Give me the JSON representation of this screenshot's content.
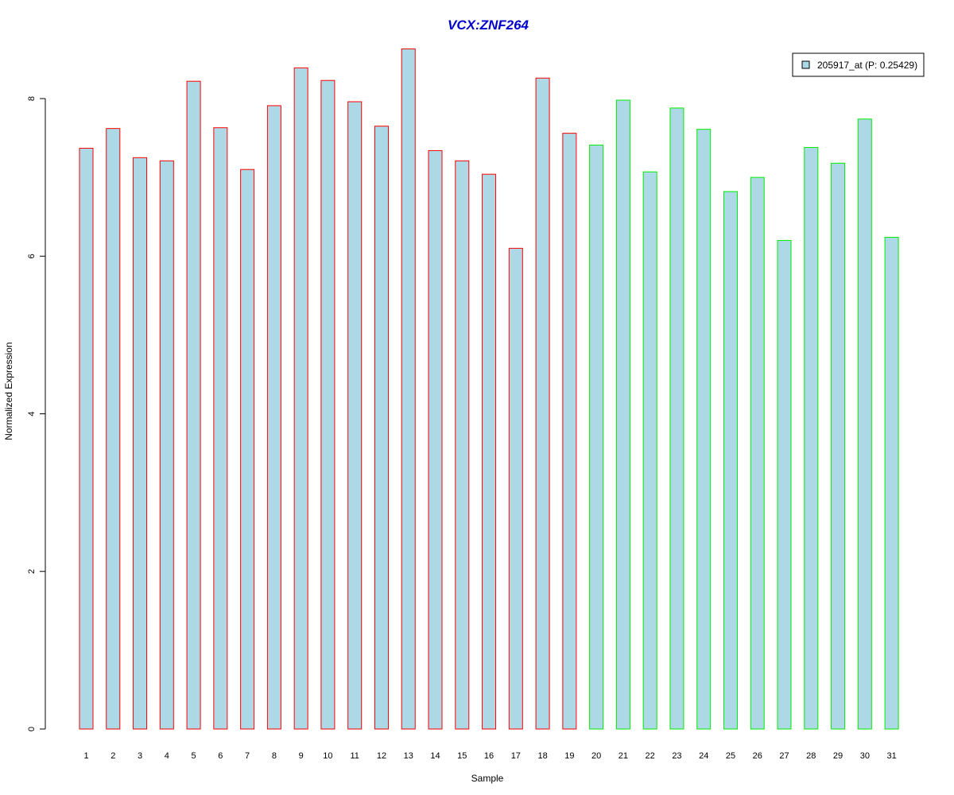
{
  "chart_data": {
    "type": "bar",
    "title": "VCX:ZNF264",
    "xlabel": "Sample",
    "ylabel": "Normalized Expression",
    "categories": [
      "1",
      "2",
      "3",
      "4",
      "5",
      "6",
      "7",
      "8",
      "9",
      "10",
      "11",
      "12",
      "13",
      "14",
      "15",
      "16",
      "17",
      "18",
      "19",
      "20",
      "21",
      "22",
      "23",
      "24",
      "25",
      "26",
      "27",
      "28",
      "29",
      "30",
      "31"
    ],
    "series": [
      {
        "name": "205917_at (P: 0.25429)",
        "values": [
          7.37,
          7.62,
          7.25,
          7.21,
          8.22,
          7.63,
          7.1,
          7.91,
          8.39,
          8.23,
          7.96,
          7.65,
          8.63,
          7.34,
          7.21,
          7.04,
          6.1,
          8.26,
          7.56,
          7.41,
          7.98,
          7.07,
          7.88,
          7.61,
          6.82,
          7.0,
          6.2,
          7.38,
          7.18,
          7.74,
          6.24
        ]
      }
    ],
    "ylim": [
      0,
      8.7
    ],
    "yticks": [
      "0",
      "2",
      "4",
      "6",
      "8"
    ],
    "grid": false,
    "legend_position": "top-right",
    "colors": {
      "title": "#0000cc",
      "bar_fill": "#add8e6",
      "group1_border": "#ff0000",
      "group2_border": "#00ee00",
      "axis": "#000000"
    },
    "groups": [
      {
        "from": 0,
        "to": 18,
        "border": "#ff0000"
      },
      {
        "from": 19,
        "to": 30,
        "border": "#00ee00"
      }
    ]
  }
}
